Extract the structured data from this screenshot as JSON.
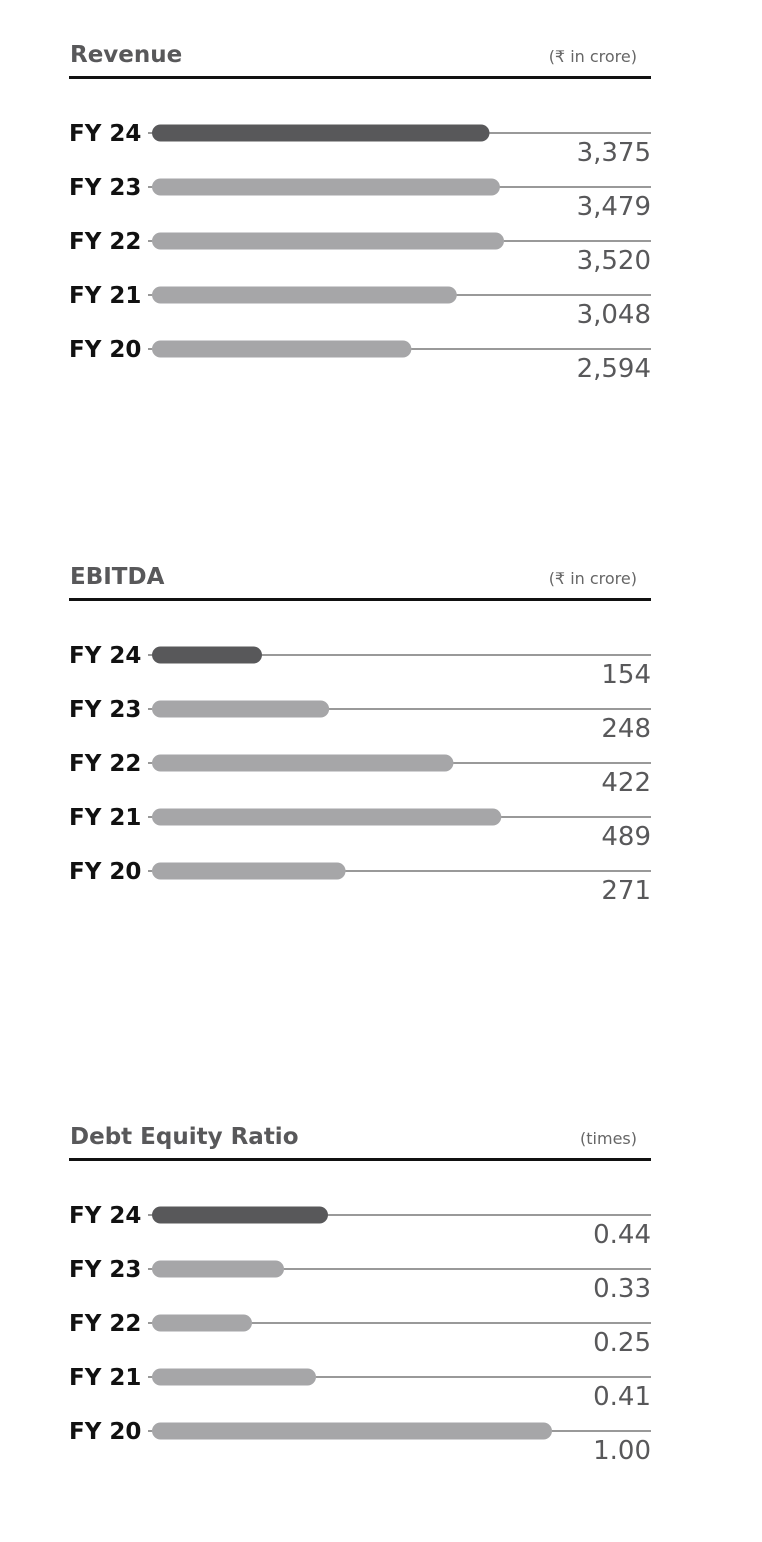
{
  "chart_data": [
    {
      "type": "bar",
      "title": "Revenue",
      "unit": "(₹ in crore)",
      "categories": [
        "FY 24",
        "FY 23",
        "FY 22",
        "FY 21",
        "FY 20"
      ],
      "values": [
        3375,
        3479,
        3520,
        3048,
        2594
      ],
      "value_labels": [
        "3,375",
        "3,479",
        "3,520",
        "3,048",
        "2,594"
      ],
      "xlim": [
        0,
        4000
      ],
      "highlight_index": 0,
      "colors": {
        "highlight": "#58585a",
        "default": "#a6a6a8",
        "line": "#333333"
      }
    },
    {
      "type": "bar",
      "title": "EBITDA",
      "unit": "(₹ in crore)",
      "categories": [
        "FY 24",
        "FY 23",
        "FY 22",
        "FY 21",
        "FY 20"
      ],
      "values": [
        154,
        248,
        422,
        489,
        271
      ],
      "value_labels": [
        "154",
        "248",
        "422",
        "489",
        "271"
      ],
      "xlim": [
        0,
        560
      ],
      "highlight_index": 0,
      "colors": {
        "highlight": "#58585a",
        "default": "#a6a6a8",
        "line": "#333333"
      }
    },
    {
      "type": "bar",
      "title": "Debt Equity Ratio",
      "unit": "(times)",
      "categories": [
        "FY 24",
        "FY 23",
        "FY 22",
        "FY 21",
        "FY 20"
      ],
      "values": [
        0.44,
        0.33,
        0.25,
        0.41,
        1.0
      ],
      "value_labels": [
        "0.44",
        "0.33",
        "0.25",
        "0.41",
        "1.00"
      ],
      "xlim": [
        0,
        1.0
      ],
      "highlight_index": 0,
      "colors": {
        "highlight": "#58585a",
        "default": "#a6a6a8",
        "line": "#333333"
      }
    }
  ]
}
